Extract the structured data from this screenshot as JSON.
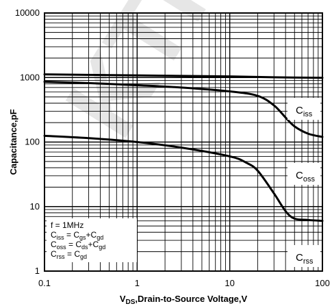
{
  "watermark": "KTP",
  "chart_data": {
    "type": "line",
    "xscale": "log",
    "yscale": "log",
    "xlim": [
      0.1,
      100
    ],
    "ylim": [
      1,
      10000
    ],
    "grid": true,
    "xlabel": {
      "main": "V",
      "sub": "DS",
      "rest": ",Drain-to-Source Voltage,V"
    },
    "ylabel": "Capacitance,pF",
    "xticks": [
      {
        "value": 0.1,
        "label": "0.1"
      },
      {
        "value": 1,
        "label": "1"
      },
      {
        "value": 10,
        "label": "10"
      },
      {
        "value": 100,
        "label": "100"
      }
    ],
    "yticks": [
      {
        "value": 1,
        "label": "1"
      },
      {
        "value": 10,
        "label": "10"
      },
      {
        "value": 100,
        "label": "100"
      },
      {
        "value": 1000,
        "label": "1000"
      },
      {
        "value": 10000,
        "label": "10000"
      }
    ],
    "series": [
      {
        "name": "Ciss",
        "main": "C",
        "sub": "iss",
        "x": [
          0.1,
          0.3,
          1,
          3,
          10,
          30,
          100
        ],
        "y": [
          1120,
          1100,
          1080,
          1060,
          1040,
          1010,
          990
        ]
      },
      {
        "name": "Coss",
        "main": "C",
        "sub": "oss",
        "x": [
          0.1,
          0.3,
          1,
          3,
          10,
          20,
          30,
          40,
          50,
          70,
          100
        ],
        "y": [
          860,
          820,
          760,
          700,
          610,
          520,
          370,
          240,
          175,
          135,
          120
        ]
      },
      {
        "name": "Crss",
        "main": "C",
        "sub": "rss",
        "x": [
          0.1,
          0.3,
          1,
          3,
          10,
          15,
          20,
          30,
          40,
          50,
          70,
          100
        ],
        "y": [
          125,
          115,
          100,
          82,
          60,
          48,
          36,
          16,
          8.5,
          6.5,
          6.2,
          6.0
        ]
      }
    ],
    "annotation": [
      [
        {
          "t": "f = 1MHz"
        }
      ],
      [
        {
          "t": "C"
        },
        {
          "t": "iss",
          "sub": true
        },
        {
          "t": " = C"
        },
        {
          "t": "gs",
          "sub": true
        },
        {
          "t": "+C"
        },
        {
          "t": "gd",
          "sub": true
        }
      ],
      [
        {
          "t": "C"
        },
        {
          "t": "oss",
          "sub": true
        },
        {
          "t": " = C"
        },
        {
          "t": "ds",
          "sub": true
        },
        {
          "t": "+C"
        },
        {
          "t": "gd",
          "sub": true
        }
      ],
      [
        {
          "t": "C"
        },
        {
          "t": "rss",
          "sub": true
        },
        {
          "t": " = C"
        },
        {
          "t": "gd",
          "sub": true
        }
      ]
    ]
  }
}
